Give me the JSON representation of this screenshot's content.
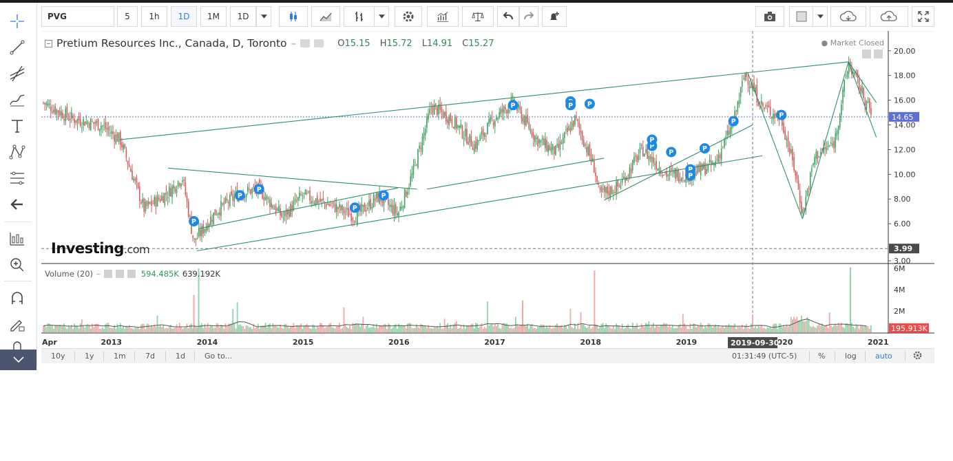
{
  "toolbar": {
    "symbol": "PVG",
    "intervals": [
      "5",
      "1h",
      "1D",
      "1M"
    ],
    "active_interval": "1D",
    "interval_dropdown": "1D"
  },
  "legend": {
    "title": "Pretium Resources Inc., Canada, D, Toronto",
    "open_label": "O",
    "open": "15.15",
    "high_label": "H",
    "high": "15.72",
    "low_label": "L",
    "low": "14.91",
    "close_label": "C",
    "close": "15.27",
    "market_status": "Market Closed"
  },
  "price_axis": {
    "ticks": [
      "20.00",
      "18.00",
      "16.00",
      "14.00",
      "12.00",
      "10.00",
      "8.00",
      "6.00",
      "3.99",
      "3.00"
    ],
    "current_price": "14.65",
    "crosshair_price": "3.99",
    "current_price_color": "#5b6fd6"
  },
  "volume": {
    "label": "Volume (20)",
    "value1": "594.485K",
    "value2": "639.192K",
    "ticks": [
      "6M",
      "4M",
      "2M"
    ],
    "current": "195.913K",
    "current_color": "#e84e4e"
  },
  "time_axis": {
    "labels": [
      "Apr",
      "2013",
      "2014",
      "2015",
      "2016",
      "2017",
      "2018",
      "2019",
      "2020",
      "2021"
    ],
    "crosshair_date": "2019-09-30"
  },
  "logo": {
    "name": "Investing",
    "suffix": ".com"
  },
  "bottom_bar": {
    "ranges": [
      "10y",
      "1y",
      "1m",
      "7d",
      "1d"
    ],
    "goto": "Go to...",
    "time": "01:31:49 (UTC-5)",
    "percent": "%",
    "log": "log",
    "auto": "auto"
  },
  "chart_data": {
    "type": "candlestick",
    "title": "Pretium Resources Inc., Canada, D, Toronto",
    "ylim": [
      3.0,
      20.6
    ],
    "x": [
      2012.3,
      2012.6,
      2012.9,
      2013.1,
      2013.35,
      2013.6,
      2013.75,
      2013.87,
      2014.1,
      2014.35,
      2014.55,
      2014.8,
      2015.0,
      2015.3,
      2015.55,
      2015.8,
      2016.0,
      2016.15,
      2016.35,
      2016.55,
      2016.8,
      2017.0,
      2017.2,
      2017.45,
      2017.65,
      2017.85,
      2018.05,
      2018.1,
      2018.3,
      2018.55,
      2018.8,
      2019.05,
      2019.3,
      2019.5,
      2019.62,
      2019.8,
      2020.0,
      2020.15,
      2020.22,
      2020.35,
      2020.55,
      2020.7,
      2020.85,
      2020.95
    ],
    "values": [
      15.8,
      14.5,
      14.0,
      12.8,
      7.2,
      8.5,
      9.8,
      4.5,
      7.0,
      8.5,
      8.8,
      6.5,
      8.3,
      7.5,
      6.6,
      8.2,
      6.8,
      10.0,
      15.5,
      14.5,
      12.3,
      14.5,
      15.8,
      12.8,
      11.8,
      14.5,
      10.5,
      8.3,
      9.0,
      12.0,
      10.0,
      10.0,
      10.8,
      14.2,
      18.2,
      15.5,
      14.5,
      10.0,
      6.8,
      11.5,
      12.5,
      19.0,
      16.5,
      14.6
    ],
    "annotations": [
      "P"
    ]
  }
}
